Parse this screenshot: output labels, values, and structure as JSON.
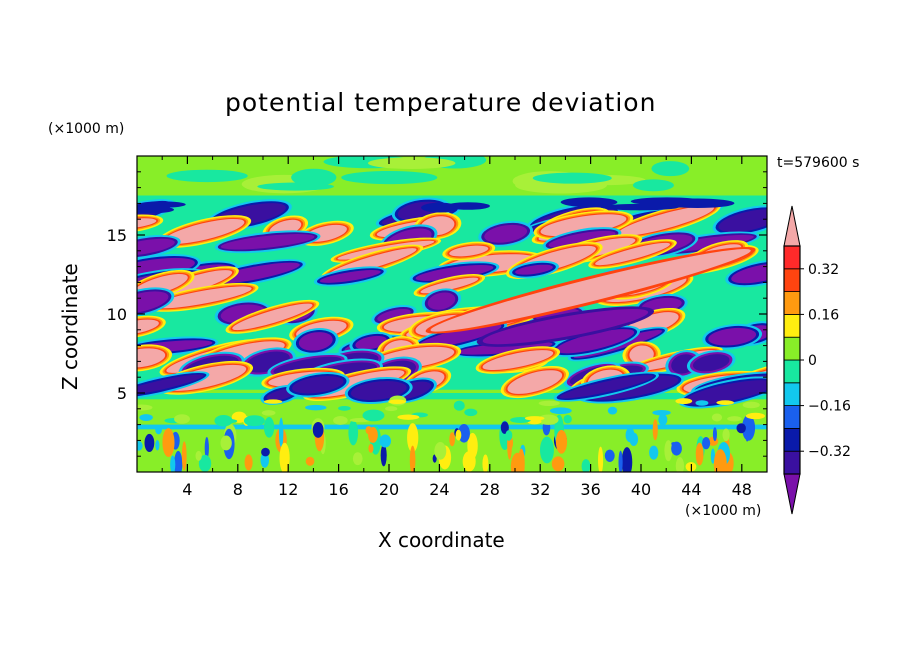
{
  "chart_data": {
    "type": "heatmap",
    "title": "potential temperature deviation",
    "xlabel": "X coordinate",
    "ylabel": "Z coordinate",
    "x_unit": "(×1000 m)",
    "y_unit": "(×1000 m)",
    "time_label": "t=579600 s",
    "xlim": [
      0,
      50
    ],
    "ylim": [
      0,
      20
    ],
    "xticks": [
      "4",
      "8",
      "12",
      "16",
      "20",
      "24",
      "28",
      "32",
      "36",
      "40",
      "44",
      "48"
    ],
    "yticks": [
      "5",
      "10",
      "15"
    ],
    "colorbar": {
      "levels": [
        -0.4,
        -0.32,
        -0.24,
        -0.16,
        -0.08,
        0,
        0.08,
        0.16,
        0.24,
        0.32,
        0.4
      ],
      "tick_labels": [
        "0.32",
        "0.16",
        "0",
        "−0.16",
        "−0.32"
      ],
      "tick_values": [
        0.32,
        0.16,
        0,
        -0.16,
        -0.32
      ],
      "colors": [
        "#7a10aa",
        "#3a10a0",
        "#0a1aaa",
        "#1a60ee",
        "#12c8ee",
        "#18e8a0",
        "#88ee28",
        "#ffee10",
        "#ff9a10",
        "#ff4410",
        "#ff2a2a",
        "#f4a8a8"
      ],
      "extend": "both"
    }
  }
}
